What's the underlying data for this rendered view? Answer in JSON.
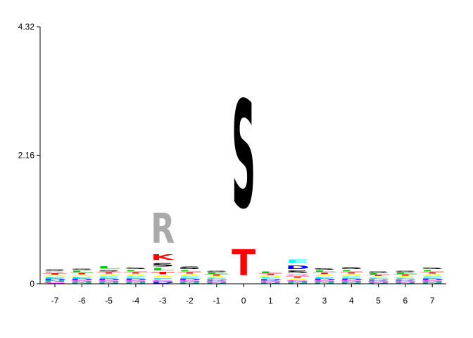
{
  "chart_data": {
    "type": "sequence-logo",
    "title": "",
    "xlabel": "",
    "ylabel": "",
    "ylim": [
      0,
      4.32
    ],
    "y_ticks": [
      "0",
      "2.16",
      "4.32"
    ],
    "positions": [
      "-7",
      "-6",
      "-5",
      "-4",
      "-3",
      "-2",
      "-1",
      "0",
      "1",
      "2",
      "3",
      "4",
      "5",
      "6",
      "7"
    ],
    "colors": {
      "S": "#000000",
      "T": "#ff0000",
      "R": "#aaaaaa",
      "K": "#ff0000",
      "D": "#0000ff",
      "E": "#00ffff",
      "L": "#00cc00",
      "A": "#ffff00",
      "G": "#ff00ff",
      "P": "#ffaa00",
      "N": "#00aaaa",
      "Q": "#ff66cc",
      "V": "#33aa33",
      "I": "#006600",
      "F": "#884400",
      "M": "#aa00aa",
      "Y": "#ccaa00",
      "W": "#663300",
      "H": "#0088ff",
      "C": "#999900"
    },
    "letter_stacks": [
      {
        "position": "-7",
        "letters": [
          {
            "letter": "G",
            "height": 0.03
          },
          {
            "letter": "N",
            "height": 0.03
          },
          {
            "letter": "D",
            "height": 0.03
          },
          {
            "letter": "E",
            "height": 0.03
          },
          {
            "letter": "A",
            "height": 0.03
          },
          {
            "letter": "T",
            "height": 0.03
          },
          {
            "letter": "R",
            "height": 0.03
          },
          {
            "letter": "S",
            "height": 0.03
          }
        ]
      },
      {
        "position": "-6",
        "letters": [
          {
            "letter": "N",
            "height": 0.03
          },
          {
            "letter": "G",
            "height": 0.03
          },
          {
            "letter": "D",
            "height": 0.03
          },
          {
            "letter": "E",
            "height": 0.03
          },
          {
            "letter": "A",
            "height": 0.035
          },
          {
            "letter": "T",
            "height": 0.035
          },
          {
            "letter": "L",
            "height": 0.035
          },
          {
            "letter": "S",
            "height": 0.04
          }
        ]
      },
      {
        "position": "-5",
        "letters": [
          {
            "letter": "N",
            "height": 0.03
          },
          {
            "letter": "G",
            "height": 0.03
          },
          {
            "letter": "D",
            "height": 0.035
          },
          {
            "letter": "E",
            "height": 0.035
          },
          {
            "letter": "A",
            "height": 0.035
          },
          {
            "letter": "T",
            "height": 0.035
          },
          {
            "letter": "S",
            "height": 0.04
          },
          {
            "letter": "L",
            "height": 0.06
          }
        ]
      },
      {
        "position": "-4",
        "letters": [
          {
            "letter": "N",
            "height": 0.03
          },
          {
            "letter": "G",
            "height": 0.03
          },
          {
            "letter": "D",
            "height": 0.035
          },
          {
            "letter": "E",
            "height": 0.035
          },
          {
            "letter": "A",
            "height": 0.035
          },
          {
            "letter": "T",
            "height": 0.035
          },
          {
            "letter": "L",
            "height": 0.04
          },
          {
            "letter": "S",
            "height": 0.04
          }
        ]
      },
      {
        "position": "-3",
        "letters": [
          {
            "letter": "D",
            "height": 0.03
          },
          {
            "letter": "G",
            "height": 0.03
          },
          {
            "letter": "E",
            "height": 0.04
          },
          {
            "letter": "A",
            "height": 0.05
          },
          {
            "letter": "T",
            "height": 0.06
          },
          {
            "letter": "L",
            "height": 0.06
          },
          {
            "letter": "S",
            "height": 0.1
          },
          {
            "letter": "K",
            "height": 0.15
          },
          {
            "letter": "R",
            "height": 0.82
          }
        ]
      },
      {
        "position": "-2",
        "letters": [
          {
            "letter": "N",
            "height": 0.03
          },
          {
            "letter": "G",
            "height": 0.03
          },
          {
            "letter": "D",
            "height": 0.035
          },
          {
            "letter": "E",
            "height": 0.035
          },
          {
            "letter": "A",
            "height": 0.035
          },
          {
            "letter": "T",
            "height": 0.035
          },
          {
            "letter": "L",
            "height": 0.035
          },
          {
            "letter": "S",
            "height": 0.06
          }
        ]
      },
      {
        "position": "-1",
        "letters": [
          {
            "letter": "N",
            "height": 0.025
          },
          {
            "letter": "G",
            "height": 0.025
          },
          {
            "letter": "D",
            "height": 0.025
          },
          {
            "letter": "E",
            "height": 0.025
          },
          {
            "letter": "A",
            "height": 0.03
          },
          {
            "letter": "T",
            "height": 0.03
          },
          {
            "letter": "L",
            "height": 0.03
          },
          {
            "letter": "S",
            "height": 0.04
          }
        ]
      },
      {
        "position": "0",
        "letters": [
          {
            "letter": "T",
            "height": 0.7
          },
          {
            "letter": "S",
            "height": 2.9
          }
        ]
      },
      {
        "position": "1",
        "letters": [
          {
            "letter": "N",
            "height": 0.025
          },
          {
            "letter": "G",
            "height": 0.025
          },
          {
            "letter": "D",
            "height": 0.03
          },
          {
            "letter": "E",
            "height": 0.03
          },
          {
            "letter": "A",
            "height": 0.03
          },
          {
            "letter": "T",
            "height": 0.03
          },
          {
            "letter": "L",
            "height": 0.05
          }
        ]
      },
      {
        "position": "2",
        "letters": [
          {
            "letter": "N",
            "height": 0.03
          },
          {
            "letter": "G",
            "height": 0.03
          },
          {
            "letter": "A",
            "height": 0.035
          },
          {
            "letter": "T",
            "height": 0.035
          },
          {
            "letter": "Q",
            "height": 0.04
          },
          {
            "letter": "S",
            "height": 0.06
          },
          {
            "letter": "D",
            "height": 0.1
          },
          {
            "letter": "E",
            "height": 0.1
          }
        ]
      },
      {
        "position": "3",
        "letters": [
          {
            "letter": "N",
            "height": 0.03
          },
          {
            "letter": "G",
            "height": 0.03
          },
          {
            "letter": "D",
            "height": 0.03
          },
          {
            "letter": "E",
            "height": 0.035
          },
          {
            "letter": "A",
            "height": 0.035
          },
          {
            "letter": "T",
            "height": 0.035
          },
          {
            "letter": "L",
            "height": 0.035
          },
          {
            "letter": "S",
            "height": 0.04
          }
        ]
      },
      {
        "position": "4",
        "letters": [
          {
            "letter": "N",
            "height": 0.03
          },
          {
            "letter": "G",
            "height": 0.03
          },
          {
            "letter": "D",
            "height": 0.035
          },
          {
            "letter": "E",
            "height": 0.035
          },
          {
            "letter": "A",
            "height": 0.035
          },
          {
            "letter": "T",
            "height": 0.035
          },
          {
            "letter": "L",
            "height": 0.04
          },
          {
            "letter": "S",
            "height": 0.05
          }
        ]
      },
      {
        "position": "5",
        "letters": [
          {
            "letter": "N",
            "height": 0.025
          },
          {
            "letter": "G",
            "height": 0.025
          },
          {
            "letter": "D",
            "height": 0.025
          },
          {
            "letter": "E",
            "height": 0.025
          },
          {
            "letter": "A",
            "height": 0.025
          },
          {
            "letter": "T",
            "height": 0.025
          },
          {
            "letter": "L",
            "height": 0.03
          },
          {
            "letter": "S",
            "height": 0.03
          }
        ]
      },
      {
        "position": "6",
        "letters": [
          {
            "letter": "N",
            "height": 0.025
          },
          {
            "letter": "G",
            "height": 0.025
          },
          {
            "letter": "D",
            "height": 0.025
          },
          {
            "letter": "E",
            "height": 0.025
          },
          {
            "letter": "A",
            "height": 0.03
          },
          {
            "letter": "T",
            "height": 0.03
          },
          {
            "letter": "L",
            "height": 0.03
          },
          {
            "letter": "S",
            "height": 0.03
          }
        ]
      },
      {
        "position": "7",
        "letters": [
          {
            "letter": "N",
            "height": 0.03
          },
          {
            "letter": "G",
            "height": 0.03
          },
          {
            "letter": "D",
            "height": 0.035
          },
          {
            "letter": "E",
            "height": 0.035
          },
          {
            "letter": "A",
            "height": 0.035
          },
          {
            "letter": "T",
            "height": 0.035
          },
          {
            "letter": "L",
            "height": 0.04
          },
          {
            "letter": "S",
            "height": 0.04
          }
        ]
      }
    ]
  }
}
